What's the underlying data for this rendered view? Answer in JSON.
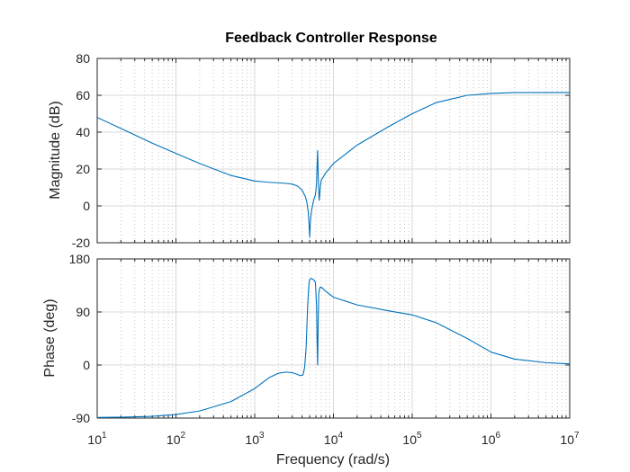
{
  "chart_data": {
    "type": "line",
    "title": "Feedback Controller Response",
    "xlabel": "Frequency  (rad/s)",
    "xscale": "log",
    "xlim": [
      10,
      10000000
    ],
    "x_ticks": [
      {
        "value": 10,
        "base": "10",
        "exp": "1"
      },
      {
        "value": 100,
        "base": "10",
        "exp": "2"
      },
      {
        "value": 1000,
        "base": "10",
        "exp": "3"
      },
      {
        "value": 10000,
        "base": "10",
        "exp": "4"
      },
      {
        "value": 100000,
        "base": "10",
        "exp": "5"
      },
      {
        "value": 1000000,
        "base": "10",
        "exp": "6"
      },
      {
        "value": 10000000,
        "base": "10",
        "exp": "7"
      }
    ],
    "grid": true,
    "line_color": "#0072BD",
    "panels": [
      {
        "id": "magnitude",
        "ylabel": "Magnitude (dB)",
        "ylim": [
          -20,
          80
        ],
        "y_ticks": [
          "-20",
          "0",
          "20",
          "40",
          "60",
          "80"
        ],
        "y_tick_values": [
          -20,
          0,
          20,
          40,
          60,
          80
        ],
        "x": [
          10,
          20,
          50,
          100,
          200,
          500,
          1000,
          1500,
          2000,
          2500,
          3000,
          3500,
          4000,
          4400,
          4600,
          4800,
          4900,
          5000,
          5100,
          5300,
          5600,
          5900,
          6100,
          6200,
          6300,
          6400,
          6500,
          6600,
          6800,
          7000,
          7500,
          8000,
          9000,
          10000,
          20000,
          50000,
          100000,
          200000,
          500000,
          1000000,
          2000000,
          5000000,
          10000000
        ],
        "y": [
          48,
          42,
          34,
          28.5,
          23,
          16.5,
          13.5,
          12.8,
          12.5,
          12.2,
          11.8,
          10.8,
          8.5,
          5,
          2,
          -4,
          -10,
          -17,
          -8,
          -2,
          3,
          6,
          12,
          22,
          30,
          18,
          8,
          3,
          10,
          14,
          16,
          18,
          20.5,
          23,
          33,
          43,
          50,
          56,
          60,
          61,
          61.5,
          61.5,
          61.5
        ]
      },
      {
        "id": "phase",
        "ylabel": "Phase (deg)",
        "ylim": [
          -90,
          180
        ],
        "y_ticks": [
          "-90",
          "0",
          "90",
          "180"
        ],
        "y_tick_values": [
          -90,
          0,
          90,
          180
        ],
        "x": [
          10,
          20,
          50,
          100,
          200,
          500,
          1000,
          1500,
          2000,
          2500,
          3000,
          3500,
          3800,
          4100,
          4300,
          4500,
          4700,
          4900,
          5000,
          5200,
          5600,
          5900,
          6100,
          6200,
          6300,
          6400,
          6500,
          6600,
          6800,
          7000,
          8000,
          10000,
          20000,
          50000,
          100000,
          200000,
          500000,
          1000000,
          2000000,
          5000000,
          10000000
        ],
        "y": [
          -89,
          -88.5,
          -87,
          -84,
          -78,
          -62,
          -40,
          -22,
          -14,
          -12,
          -13,
          -16,
          -18,
          -17,
          -5,
          30,
          100,
          140,
          145,
          147,
          145,
          140,
          100,
          40,
          0,
          70,
          120,
          128,
          132,
          132,
          125,
          115,
          102,
          92,
          85,
          72,
          45,
          22,
          10,
          4,
          2
        ]
      }
    ]
  }
}
